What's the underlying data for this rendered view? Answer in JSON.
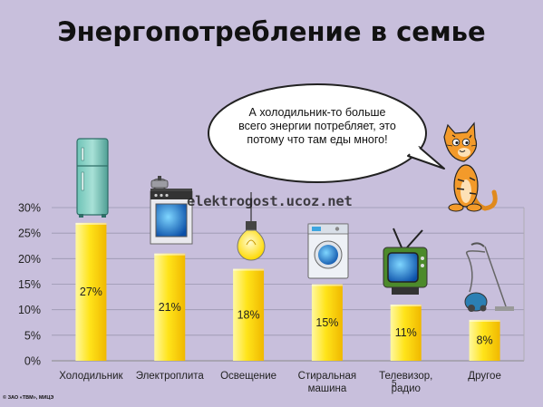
{
  "title": "Энергопотребление в семье",
  "watermark": "elektrogost.ucoz.net",
  "copyright": "© ЗАО «ТВМ», МИЦЭ",
  "speech_bubble": "А холодильник-то больше всего энергии потребляет, это потому что там еды много!",
  "page_number": "5",
  "colors": {
    "background": "#c8bfdc",
    "bar_light": "#fff8a0",
    "bar_mid": "#ffe41a",
    "bar_dark": "#f0b800",
    "grid": "#9a96b0"
  },
  "icons": [
    "fridge-icon",
    "stove-icon",
    "light-bulb-icon",
    "washing-machine-icon",
    "tv-icon",
    "vacuum-cleaner-icon",
    "cat-icon"
  ],
  "chart_data": {
    "type": "bar",
    "categories": [
      "Холодильник",
      "Электроплита",
      "Освещение",
      "Стиральная машина",
      "Телевизор, радио",
      "Другое"
    ],
    "category_lines": [
      [
        "Холодильник"
      ],
      [
        "Электроплита"
      ],
      [
        "Освещение"
      ],
      [
        "Стиральная",
        "машина"
      ],
      [
        "Телевизор,",
        "радио"
      ],
      [
        "Другое"
      ]
    ],
    "values": [
      27,
      21,
      18,
      15,
      11,
      8
    ],
    "value_labels": [
      "27%",
      "21%",
      "18%",
      "15%",
      "11%",
      "8%"
    ],
    "ytick_labels": [
      "0%",
      "5%",
      "10%",
      "15%",
      "20%",
      "25%",
      "30%"
    ],
    "ylim": [
      0,
      30
    ],
    "ytick_step": 5,
    "grid": true
  }
}
